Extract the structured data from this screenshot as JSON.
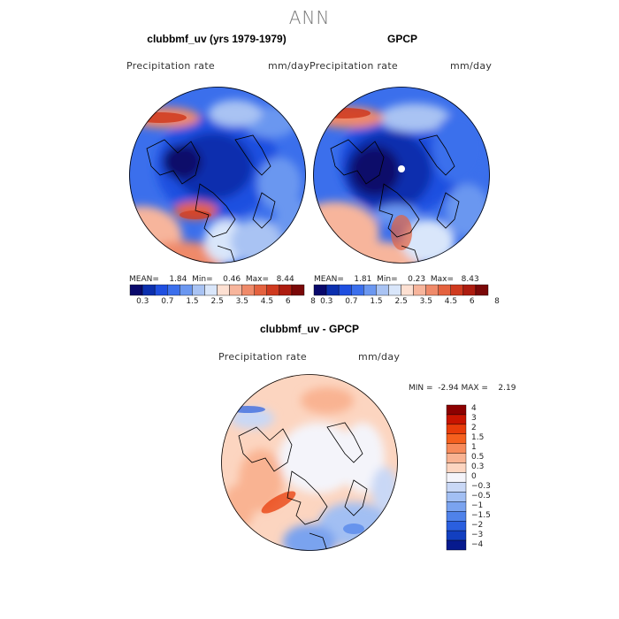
{
  "season": "ANN",
  "panels": [
    {
      "title": "clubbmf_uv (yrs 1979-1979)",
      "variable": "Precipitation rate",
      "units": "mm/day",
      "mean_label": "MEAN=",
      "mean": "1.84",
      "min_label": "Min=",
      "min": "0.46",
      "max_label": "Max=",
      "max": "8.44",
      "colorbar_ticks": [
        "0.3",
        "0.7",
        "1.5",
        "2.5",
        "3.5",
        "4.5",
        "6",
        "8"
      ]
    },
    {
      "title": "GPCP",
      "variable": "Precipitation rate",
      "units": "mm/day",
      "mean_label": "MEAN=",
      "mean": "1.81",
      "min_label": "Min=",
      "min": "0.23",
      "max_label": "Max=",
      "max": "8.43",
      "colorbar_ticks": [
        "0.3",
        "0.7",
        "1.5",
        "2.5",
        "3.5",
        "4.5",
        "6",
        "8"
      ]
    }
  ],
  "diff": {
    "title": "clubbmf_uv - GPCP",
    "variable": "Precipitation rate",
    "units": "mm/day",
    "min_label": "MIN =",
    "min": "-2.94",
    "max_label": "MAX =",
    "max": "2.19",
    "colorbar_ticks": [
      "4",
      "3",
      "2",
      "1.5",
      "1",
      "0.5",
      "0.3",
      "0",
      "−0.3",
      "−0.5",
      "−1",
      "−1.5",
      "−2",
      "−3",
      "−4"
    ]
  },
  "colors": {
    "precip_scale": [
      "#08086b",
      "#0b2fae",
      "#1f4fe0",
      "#3b6fec",
      "#6b97f0",
      "#a9c3f3",
      "#d9e6fa",
      "#fde0d2",
      "#f7b59c",
      "#ef8a6a",
      "#e4623f",
      "#cf3a1f",
      "#ad1c0f",
      "#7a0808"
    ],
    "diff_scale": [
      "#8c0000",
      "#c81400",
      "#e83c0a",
      "#f5601e",
      "#f78a5a",
      "#f9b392",
      "#fcd5c0",
      "#f4f4fa",
      "#c9d8f6",
      "#a2bff3",
      "#7aa3ef",
      "#4f82ea",
      "#2a5fdf",
      "#123fc0",
      "#061a8e"
    ]
  }
}
